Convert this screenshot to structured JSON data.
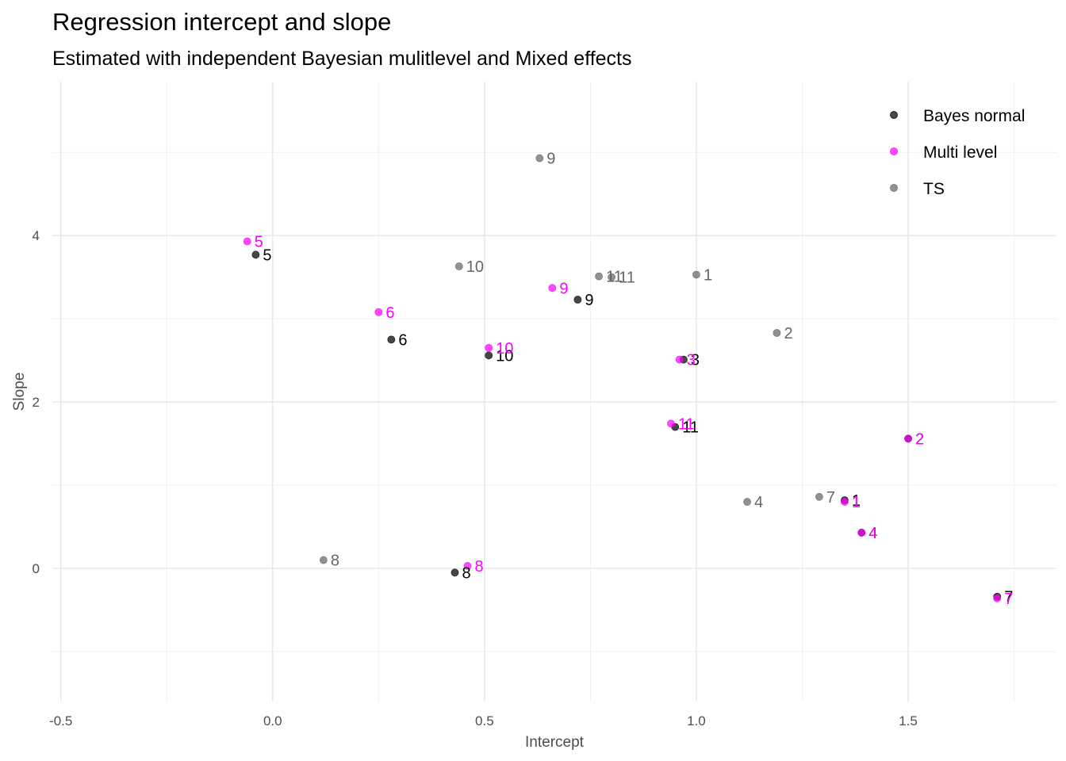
{
  "chart_data": {
    "type": "scatter",
    "title": "Regression intercept and slope",
    "subtitle": "Estimated with independent Bayesian mulitlevel and Mixed effects",
    "xlabel": "Intercept",
    "ylabel": "Slope",
    "xlim": [
      -0.52,
      1.85
    ],
    "ylim": [
      -1.6,
      5.85
    ],
    "xticks": [
      -0.5,
      0.0,
      0.5,
      1.0,
      1.5
    ],
    "xtick_labels": [
      "-0.5",
      "0.0",
      "0.5",
      "1.0",
      "1.5"
    ],
    "yticks": [
      0,
      2,
      4
    ],
    "ytick_labels": [
      "0",
      "2",
      "4"
    ],
    "grid": true,
    "legend_position": "top-right",
    "series": [
      {
        "name": "Bayes normal",
        "color": "#000000",
        "label_color": "#000000",
        "points": [
          {
            "label": "1",
            "x": 1.35,
            "y": 0.82
          },
          {
            "label": "2",
            "x": 1.5,
            "y": 1.56
          },
          {
            "label": "3",
            "x": 0.97,
            "y": 2.51
          },
          {
            "label": "4",
            "x": 1.39,
            "y": 0.43
          },
          {
            "label": "5",
            "x": -0.04,
            "y": 3.77
          },
          {
            "label": "6",
            "x": 0.28,
            "y": 2.75
          },
          {
            "label": "7",
            "x": 1.71,
            "y": -0.34
          },
          {
            "label": "8",
            "x": 0.43,
            "y": -0.05
          },
          {
            "label": "9",
            "x": 0.72,
            "y": 3.23
          },
          {
            "label": "10",
            "x": 0.51,
            "y": 2.56
          },
          {
            "label": "11",
            "x": 0.95,
            "y": 1.7
          }
        ]
      },
      {
        "name": "Multi level",
        "color": "#ff00ff",
        "label_color": "#ff00ff",
        "points": [
          {
            "label": "1",
            "x": 1.35,
            "y": 0.8
          },
          {
            "label": "2",
            "x": 1.5,
            "y": 1.56
          },
          {
            "label": "3",
            "x": 0.96,
            "y": 2.51
          },
          {
            "label": "4",
            "x": 1.39,
            "y": 0.43
          },
          {
            "label": "5",
            "x": -0.06,
            "y": 3.93
          },
          {
            "label": "6",
            "x": 0.25,
            "y": 3.08
          },
          {
            "label": "7",
            "x": 1.71,
            "y": -0.36
          },
          {
            "label": "8",
            "x": 0.46,
            "y": 0.03
          },
          {
            "label": "9",
            "x": 0.66,
            "y": 3.37
          },
          {
            "label": "10",
            "x": 0.51,
            "y": 2.65
          },
          {
            "label": "11",
            "x": 0.94,
            "y": 1.74
          }
        ]
      },
      {
        "name": "TS",
        "color": "#666666",
        "label_color": "#666666",
        "points": [
          {
            "label": "1",
            "x": 1.0,
            "y": 3.53
          },
          {
            "label": "2",
            "x": 1.19,
            "y": 2.83
          },
          {
            "label": "4",
            "x": 1.12,
            "y": 0.8
          },
          {
            "label": "7",
            "x": 1.29,
            "y": 0.86
          },
          {
            "label": "8",
            "x": 0.12,
            "y": 0.1
          },
          {
            "label": "9",
            "x": 0.63,
            "y": 4.93
          },
          {
            "label": "10",
            "x": 0.44,
            "y": 3.63
          },
          {
            "label": "11",
            "x": 0.77,
            "y": 3.51
          },
          {
            "label": "11",
            "x": 0.8,
            "y": 3.5
          }
        ]
      }
    ],
    "legend": [
      {
        "label": "Bayes normal",
        "color": "#000000"
      },
      {
        "label": "Multi level",
        "color": "#ff00ff"
      },
      {
        "label": "TS",
        "color": "#666666"
      }
    ]
  }
}
